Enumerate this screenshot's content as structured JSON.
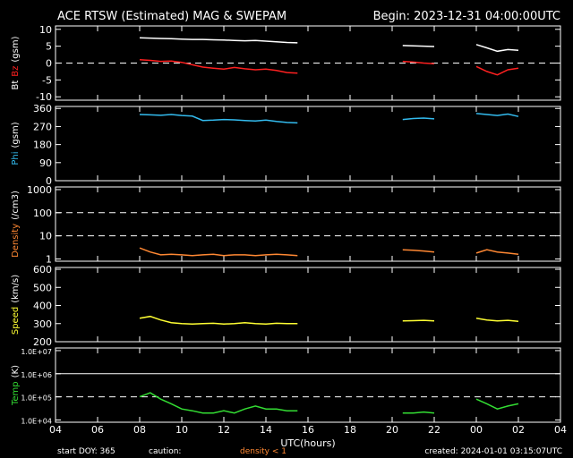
{
  "header": {
    "title": "ACE RTSW (Estimated) MAG & SWEPAM",
    "begin": "Begin: 2023-12-31 04:00:00UTC"
  },
  "chart_data": [
    {
      "type": "line",
      "ylim": [
        -11,
        11
      ],
      "yticks": [
        -10,
        -5,
        0,
        5,
        10
      ],
      "ylabel_unit": "(gsm)",
      "reference_lines": [
        {
          "value": 0,
          "style": "dashed"
        }
      ],
      "x": [
        0,
        0.5,
        1,
        1.5,
        2,
        2.5,
        3,
        3.5,
        4,
        4.5,
        5,
        5.5,
        6,
        6.5,
        7,
        7.5,
        8,
        8.5,
        9,
        9.5,
        10,
        10.5,
        11,
        11.5,
        12,
        12.5,
        13,
        13.5,
        14,
        14.5,
        15,
        15.5,
        16,
        16.5,
        17,
        17.5,
        18,
        18.5,
        19,
        19.5,
        20,
        20.5,
        21,
        21.5,
        22,
        22.5,
        23,
        23.5,
        24
      ],
      "series": [
        {
          "name": "Bt",
          "color": "#ffffff",
          "values": [
            null,
            null,
            null,
            null,
            null,
            null,
            null,
            null,
            7.5,
            7.4,
            7.3,
            7.2,
            7.1,
            7.0,
            7.0,
            6.9,
            6.8,
            6.7,
            6.6,
            6.7,
            6.5,
            6.3,
            6.1,
            6.0,
            null,
            null,
            null,
            null,
            null,
            null,
            null,
            null,
            null,
            5.2,
            5.1,
            5.0,
            4.9,
            null,
            null,
            null,
            5.5,
            4.5,
            3.5,
            4.0,
            3.8,
            null,
            null,
            null,
            null
          ]
        },
        {
          "name": "Bz",
          "color": "#ff2020",
          "values": [
            null,
            null,
            null,
            null,
            null,
            null,
            null,
            null,
            1.0,
            0.8,
            0.5,
            0.6,
            0.2,
            -0.5,
            -1.2,
            -1.5,
            -1.8,
            -1.3,
            -1.7,
            -2.0,
            -1.8,
            -2.2,
            -2.8,
            -3.0,
            null,
            null,
            null,
            null,
            null,
            null,
            null,
            null,
            null,
            0.5,
            0.3,
            0.0,
            -0.2,
            null,
            null,
            null,
            -1.0,
            -2.5,
            -3.5,
            -2.0,
            -1.5,
            null,
            null,
            null,
            null
          ]
        }
      ]
    },
    {
      "type": "line",
      "ylim": [
        0,
        370
      ],
      "yticks": [
        0,
        90,
        180,
        270,
        360
      ],
      "ylabel_unit": "(gsm)",
      "x": [
        0,
        0.5,
        1,
        1.5,
        2,
        2.5,
        3,
        3.5,
        4,
        4.5,
        5,
        5.5,
        6,
        6.5,
        7,
        7.5,
        8,
        8.5,
        9,
        9.5,
        10,
        10.5,
        11,
        11.5,
        12,
        12.5,
        13,
        13.5,
        14,
        14.5,
        15,
        15.5,
        16,
        16.5,
        17,
        17.5,
        18,
        18.5,
        19,
        19.5,
        20,
        20.5,
        21,
        21.5,
        22,
        22.5,
        23,
        23.5,
        24
      ],
      "series": [
        {
          "name": "Phi",
          "color": "#33bbee",
          "values": [
            null,
            null,
            null,
            null,
            null,
            null,
            null,
            null,
            330,
            328,
            326,
            330,
            325,
            322,
            300,
            302,
            305,
            303,
            300,
            298,
            302,
            295,
            290,
            288,
            null,
            null,
            null,
            null,
            null,
            null,
            null,
            null,
            null,
            305,
            310,
            312,
            308,
            null,
            null,
            null,
            335,
            330,
            325,
            332,
            320,
            null,
            null,
            null,
            null
          ]
        }
      ]
    },
    {
      "type": "line",
      "log_y": true,
      "ylim": [
        0.8,
        1300
      ],
      "yticks": [
        1,
        10,
        100,
        1000
      ],
      "ylabel_unit": "(/cm3)",
      "reference_lines": [
        {
          "value": 10,
          "style": "dashed"
        },
        {
          "value": 100,
          "style": "dashed"
        }
      ],
      "x": [
        0,
        0.5,
        1,
        1.5,
        2,
        2.5,
        3,
        3.5,
        4,
        4.5,
        5,
        5.5,
        6,
        6.5,
        7,
        7.5,
        8,
        8.5,
        9,
        9.5,
        10,
        10.5,
        11,
        11.5,
        12,
        12.5,
        13,
        13.5,
        14,
        14.5,
        15,
        15.5,
        16,
        16.5,
        17,
        17.5,
        18,
        18.5,
        19,
        19.5,
        20,
        20.5,
        21,
        21.5,
        22,
        22.5,
        23,
        23.5,
        24
      ],
      "series": [
        {
          "name": "Density",
          "color": "#ff8833",
          "values": [
            null,
            null,
            null,
            null,
            null,
            null,
            null,
            null,
            3,
            2,
            1.5,
            1.6,
            1.5,
            1.4,
            1.5,
            1.6,
            1.4,
            1.5,
            1.5,
            1.4,
            1.5,
            1.6,
            1.5,
            1.4,
            null,
            null,
            null,
            null,
            null,
            null,
            null,
            null,
            null,
            2.5,
            2.4,
            2.2,
            2.0,
            null,
            null,
            null,
            1.8,
            2.5,
            2.0,
            1.8,
            1.6,
            null,
            null,
            null,
            null
          ]
        }
      ]
    },
    {
      "type": "line",
      "ylim": [
        200,
        610
      ],
      "yticks": [
        200,
        300,
        400,
        500,
        600
      ],
      "ylabel_unit": "(km/s)",
      "x": [
        0,
        0.5,
        1,
        1.5,
        2,
        2.5,
        3,
        3.5,
        4,
        4.5,
        5,
        5.5,
        6,
        6.5,
        7,
        7.5,
        8,
        8.5,
        9,
        9.5,
        10,
        10.5,
        11,
        11.5,
        12,
        12.5,
        13,
        13.5,
        14,
        14.5,
        15,
        15.5,
        16,
        16.5,
        17,
        17.5,
        18,
        18.5,
        19,
        19.5,
        20,
        20.5,
        21,
        21.5,
        22,
        22.5,
        23,
        23.5,
        24
      ],
      "series": [
        {
          "name": "Speed",
          "color": "#ffff33",
          "values": [
            null,
            null,
            null,
            null,
            null,
            null,
            null,
            null,
            330,
            340,
            320,
            305,
            300,
            298,
            300,
            302,
            298,
            300,
            305,
            300,
            298,
            302,
            300,
            300,
            null,
            null,
            null,
            null,
            null,
            null,
            null,
            null,
            null,
            315,
            316,
            318,
            315,
            null,
            null,
            null,
            330,
            320,
            315,
            318,
            312,
            null,
            null,
            null,
            null
          ]
        }
      ]
    },
    {
      "type": "line",
      "log_y": true,
      "ylim": [
        8000,
        13000000
      ],
      "ylabel_unit": "(K)",
      "yticks": [
        {
          "value": 10000,
          "label": "1.0E+04"
        },
        {
          "value": 100000,
          "label": "1.0E+05"
        },
        {
          "value": 1000000,
          "label": "1.0E+06"
        },
        {
          "value": 10000000,
          "label": "1.0E+07"
        }
      ],
      "reference_lines": [
        {
          "value": 100000,
          "style": "dashed"
        },
        {
          "value": 1000000,
          "style": "solid"
        }
      ],
      "xlim": [
        0,
        24
      ],
      "xlabel": "UTC(hours)",
      "xticks": [
        {
          "value": 0,
          "label": "04"
        },
        {
          "value": 2,
          "label": "06"
        },
        {
          "value": 4,
          "label": "08"
        },
        {
          "value": 6,
          "label": "10"
        },
        {
          "value": 8,
          "label": "12"
        },
        {
          "value": 10,
          "label": "14"
        },
        {
          "value": 12,
          "label": "16"
        },
        {
          "value": 14,
          "label": "18"
        },
        {
          "value": 16,
          "label": "20"
        },
        {
          "value": 18,
          "label": "22"
        },
        {
          "value": 20,
          "label": "00"
        },
        {
          "value": 22,
          "label": "02"
        },
        {
          "value": 24,
          "label": "04"
        }
      ],
      "x": [
        0,
        0.5,
        1,
        1.5,
        2,
        2.5,
        3,
        3.5,
        4,
        4.5,
        5,
        5.5,
        6,
        6.5,
        7,
        7.5,
        8,
        8.5,
        9,
        9.5,
        10,
        10.5,
        11,
        11.5,
        12,
        12.5,
        13,
        13.5,
        14,
        14.5,
        15,
        15.5,
        16,
        16.5,
        17,
        17.5,
        18,
        18.5,
        19,
        19.5,
        20,
        20.5,
        21,
        21.5,
        22,
        22.5,
        23,
        23.5,
        24
      ],
      "series": [
        {
          "name": "Temp",
          "color": "#33dd33",
          "values": [
            null,
            null,
            null,
            null,
            null,
            null,
            null,
            null,
            100000,
            150000,
            80000,
            50000,
            30000,
            25000,
            20000,
            20000,
            25000,
            20000,
            30000,
            40000,
            30000,
            30000,
            25000,
            25000,
            null,
            null,
            null,
            null,
            null,
            null,
            null,
            null,
            null,
            20000,
            20000,
            22000,
            20000,
            null,
            null,
            null,
            80000,
            50000,
            30000,
            40000,
            50000,
            null,
            null,
            null,
            null
          ]
        }
      ]
    }
  ],
  "footer": {
    "start": "start DOY: 365",
    "caution": "caution:",
    "caution_note": "density < 1",
    "created": "created: 2024-01-01 03:15:07UTC"
  }
}
